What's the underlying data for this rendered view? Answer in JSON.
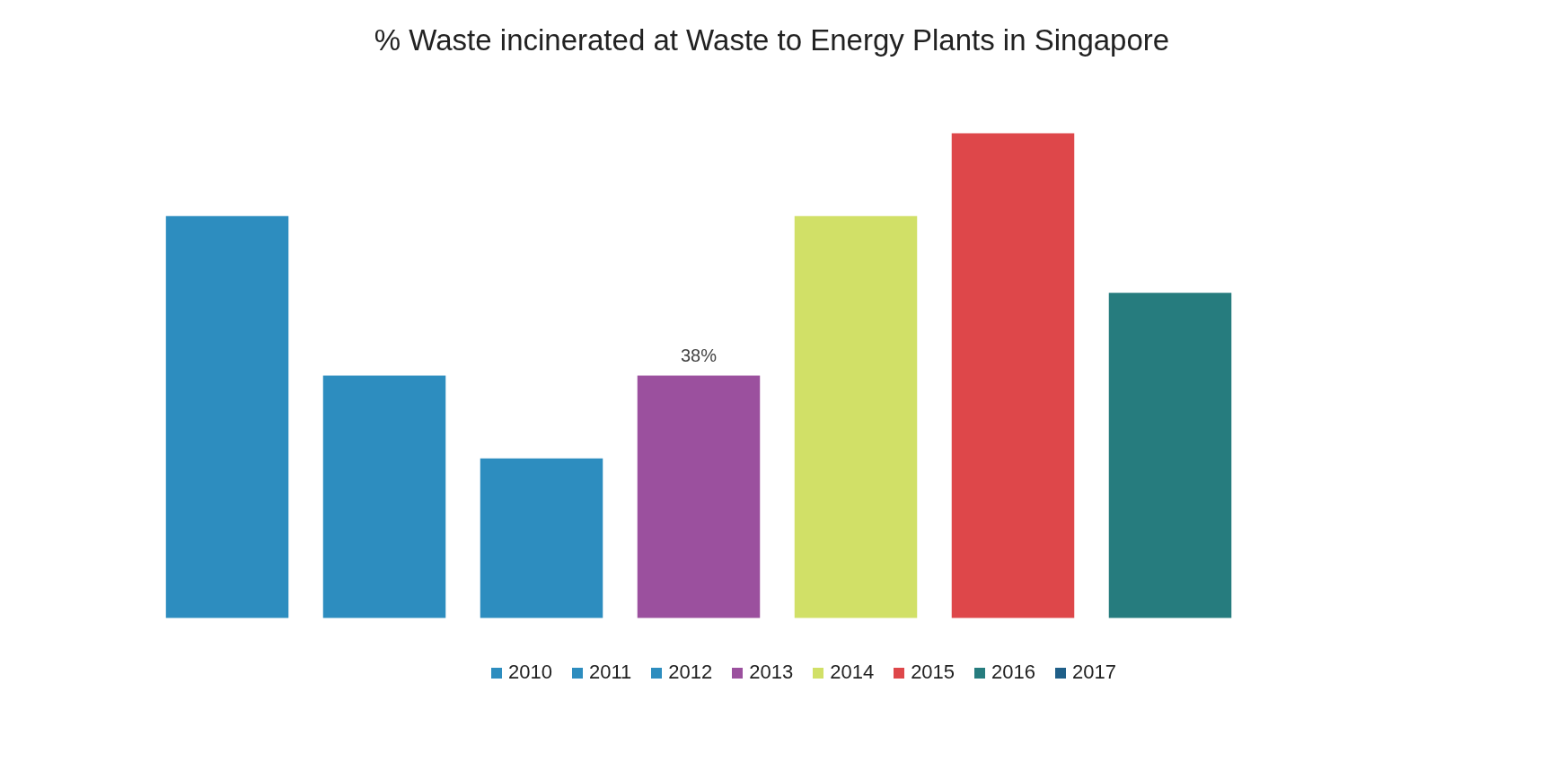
{
  "chart_data": {
    "type": "bar",
    "title": "% Waste incinerated at Waste to Energy Plants in Singapore",
    "categories": [
      null,
      null,
      null,
      null,
      null,
      null,
      null
    ],
    "stacked": true,
    "series": [
      {
        "name": "2010",
        "color": "#2d8dbf",
        "values": [
          63,
          null,
          null,
          null,
          null,
          null,
          null
        ]
      },
      {
        "name": "2011",
        "color": "#2d8dbf",
        "values": [
          null,
          38,
          null,
          null,
          null,
          null,
          null
        ]
      },
      {
        "name": "2012",
        "color": "#2d8dbf",
        "values": [
          null,
          null,
          25,
          null,
          null,
          null,
          null
        ]
      },
      {
        "name": "2013",
        "color": "#9b509e",
        "values": [
          null,
          null,
          null,
          38,
          null,
          null,
          null
        ],
        "value_labels": [
          null,
          null,
          null,
          "38%",
          null,
          null,
          null
        ]
      },
      {
        "name": "2014",
        "color": "#d1e067",
        "values": [
          null,
          null,
          null,
          null,
          63,
          null,
          null
        ]
      },
      {
        "name": "2015",
        "color": "#de474a",
        "values": [
          null,
          null,
          null,
          null,
          null,
          76,
          null
        ]
      },
      {
        "name": "2016",
        "color": "#267c7e",
        "values": [
          null,
          null,
          null,
          null,
          null,
          null,
          51
        ]
      },
      {
        "name": "2017",
        "color": "#1f5f88",
        "values": [
          null,
          null,
          null,
          null,
          null,
          null,
          null
        ]
      }
    ],
    "legend": "bottom",
    "tick_labels": false
  }
}
